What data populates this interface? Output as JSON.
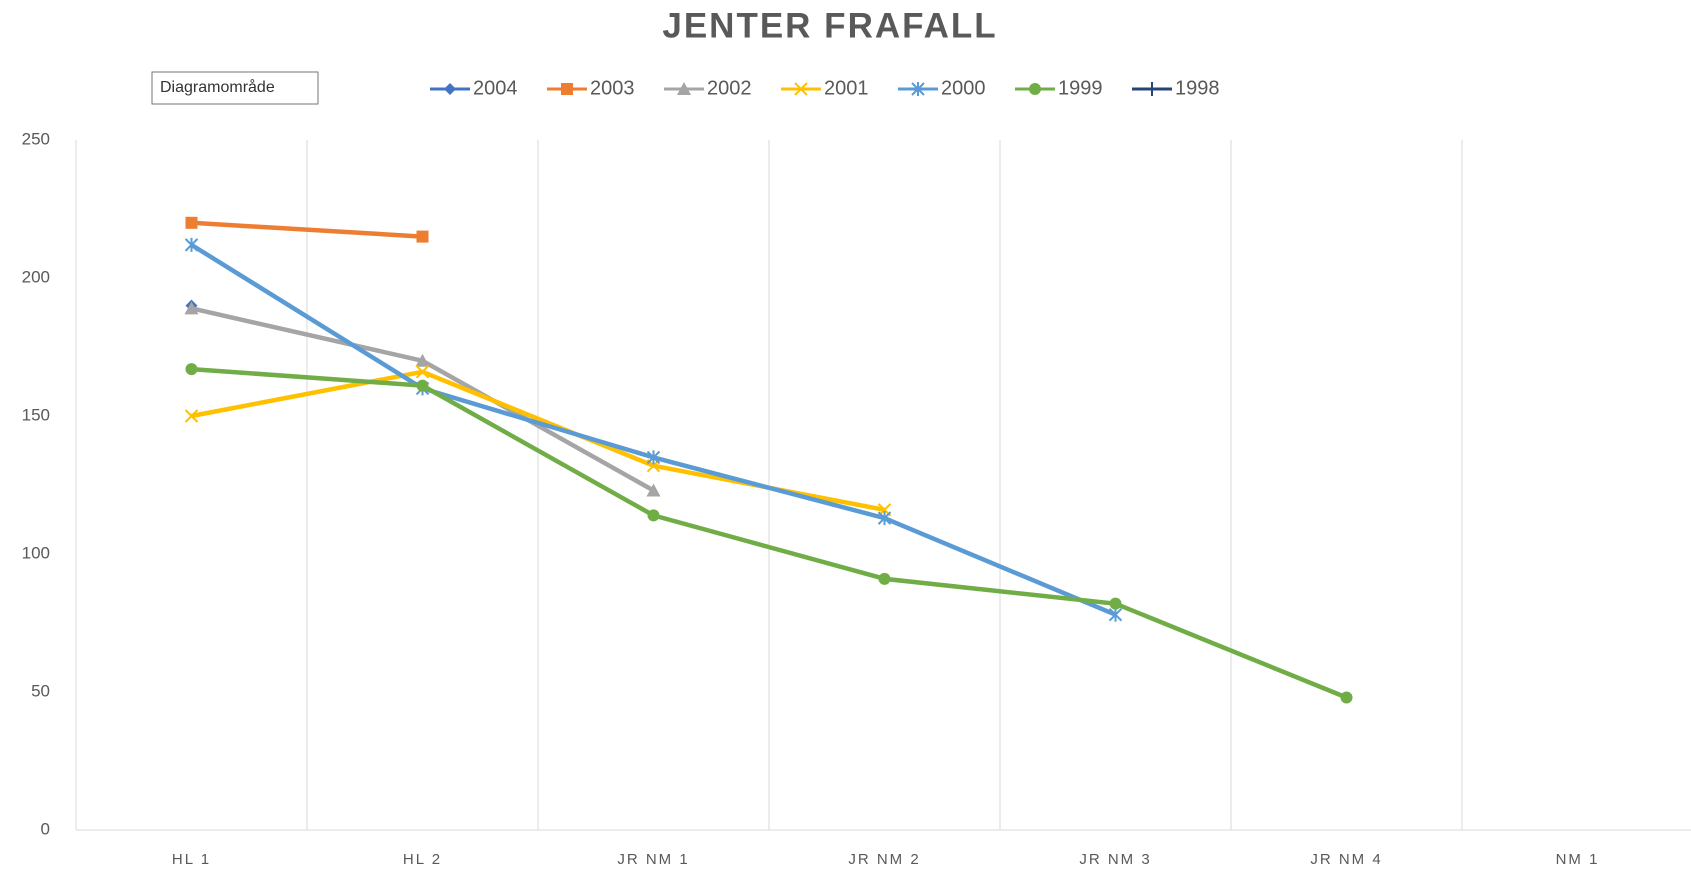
{
  "chart_data": {
    "type": "line",
    "title": "JENTER FRAFALL",
    "tooltip": "Diagramområde",
    "categories": [
      "HL 1",
      "HL 2",
      "JR NM 1",
      "JR NM 2",
      "JR NM 3",
      "JR NM 4",
      "NM 1"
    ],
    "series": [
      {
        "name": "2004",
        "color": "#4472c4",
        "marker": "diamond",
        "values": [
          190,
          null,
          null,
          null,
          null,
          null,
          null
        ]
      },
      {
        "name": "2003",
        "color": "#ed7d31",
        "marker": "square",
        "values": [
          220,
          215,
          null,
          null,
          null,
          null,
          null
        ]
      },
      {
        "name": "2002",
        "color": "#a5a5a5",
        "marker": "triangle",
        "values": [
          189,
          170,
          123,
          null,
          null,
          null,
          null
        ]
      },
      {
        "name": "2001",
        "color": "#ffc000",
        "marker": "x",
        "values": [
          150,
          166,
          132,
          116,
          null,
          null,
          null
        ]
      },
      {
        "name": "2000",
        "color": "#5b9bd5",
        "marker": "star",
        "values": [
          212,
          160,
          135,
          113,
          78,
          null,
          null
        ]
      },
      {
        "name": "1999",
        "color": "#70ad47",
        "marker": "circle",
        "values": [
          167,
          161,
          114,
          91,
          82,
          48,
          null
        ]
      },
      {
        "name": "1998",
        "color": "#264478",
        "marker": "plus",
        "values": [
          null,
          null,
          null,
          null,
          null,
          null,
          null
        ]
      }
    ],
    "ylim": [
      0,
      250
    ],
    "yticks": [
      0,
      50,
      100,
      150,
      200,
      250
    ],
    "grid": true,
    "legend": "top"
  }
}
